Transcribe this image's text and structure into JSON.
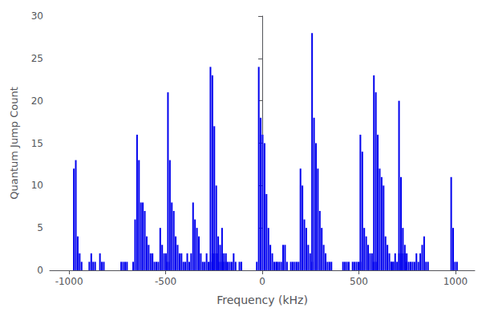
{
  "chart_data": {
    "type": "bar",
    "xlabel": "Frequency (kHz)",
    "ylabel": "Quantum Jump Count",
    "color": "#0000ee",
    "xlim": [
      -1100,
      1100
    ],
    "ylim": [
      0,
      30
    ],
    "xticks": [
      -1000,
      -500,
      0,
      500,
      1000
    ],
    "yticks": [
      0,
      5,
      10,
      15,
      20,
      25,
      30
    ],
    "grid": false,
    "x": [
      -975,
      -965,
      -955,
      -945,
      -935,
      -895,
      -885,
      -875,
      -865,
      -840,
      -830,
      -820,
      -730,
      -720,
      -710,
      -700,
      -668,
      -658,
      -648,
      -638,
      -628,
      -618,
      -608,
      -598,
      -588,
      -578,
      -568,
      -558,
      -548,
      -538,
      -528,
      -518,
      -508,
      -498,
      -488,
      -488,
      -478,
      -468,
      -458,
      -448,
      -438,
      -428,
      -418,
      -408,
      -398,
      -388,
      -378,
      -368,
      -358,
      -348,
      -338,
      -328,
      -318,
      -308,
      -298,
      -288,
      -278,
      -268,
      -258,
      -248,
      -238,
      -228,
      -218,
      -268,
      -258,
      -248,
      -238,
      -228,
      -218,
      -208,
      -198,
      -188,
      -178,
      -208,
      -198,
      -188,
      -168,
      -158,
      -148,
      -138,
      -118,
      -108,
      -28,
      -18,
      -8,
      2,
      12,
      22,
      32,
      42,
      52,
      62,
      72,
      78,
      88,
      98,
      108,
      118,
      128,
      148,
      158,
      168,
      178,
      188,
      198,
      208,
      218,
      228,
      238,
      248,
      258,
      258,
      268,
      278,
      288,
      298,
      308,
      318,
      328,
      338,
      348,
      358,
      418,
      428,
      438,
      448,
      468,
      478,
      488,
      498,
      508,
      508,
      518,
      528,
      538,
      548,
      558,
      568,
      578,
      588,
      578,
      588,
      598,
      608,
      618,
      628,
      638,
      648,
      658,
      668,
      678,
      668,
      678,
      688,
      698,
      708,
      718,
      728,
      738,
      748,
      708,
      718,
      728,
      738,
      748,
      758,
      768,
      778,
      788,
      798,
      808,
      818,
      828,
      838,
      848,
      858,
      978,
      988,
      998,
      1008
    ],
    "values": [
      12,
      13,
      4,
      2,
      1,
      1,
      2,
      1,
      1,
      2,
      1,
      1,
      1,
      1,
      1,
      1,
      1,
      6,
      16,
      13,
      8,
      8,
      7,
      4,
      3,
      2,
      2,
      1,
      1,
      1,
      5,
      3,
      2,
      2,
      1,
      21,
      13,
      8,
      7,
      4,
      3,
      2,
      2,
      1,
      1,
      2,
      1,
      2,
      8,
      6,
      5,
      4,
      2,
      1,
      1,
      2,
      1,
      1,
      2,
      2,
      2,
      2,
      1,
      24,
      23,
      17,
      10,
      4,
      3,
      2,
      2,
      1,
      1,
      5,
      1,
      2,
      1,
      1,
      2,
      1,
      1,
      1,
      1,
      24,
      18,
      16,
      15,
      9,
      5,
      3,
      2,
      1,
      1,
      1,
      1,
      1,
      3,
      3,
      1,
      1,
      1,
      1,
      1,
      1,
      12,
      10,
      6,
      5,
      3,
      2,
      1,
      28,
      18,
      15,
      12,
      7,
      5,
      3,
      2,
      1,
      1,
      1,
      1,
      1,
      1,
      1,
      1,
      1,
      1,
      1,
      1,
      16,
      14,
      5,
      4,
      3,
      2,
      2,
      1,
      1,
      23,
      21,
      16,
      12,
      11,
      10,
      4,
      3,
      2,
      1,
      1,
      1,
      1,
      2,
      1,
      2,
      2,
      2,
      2,
      1,
      20,
      11,
      5,
      3,
      2,
      1,
      1,
      1,
      1,
      2,
      1,
      2,
      3,
      4,
      1,
      1,
      11,
      5,
      1,
      1
    ]
  }
}
